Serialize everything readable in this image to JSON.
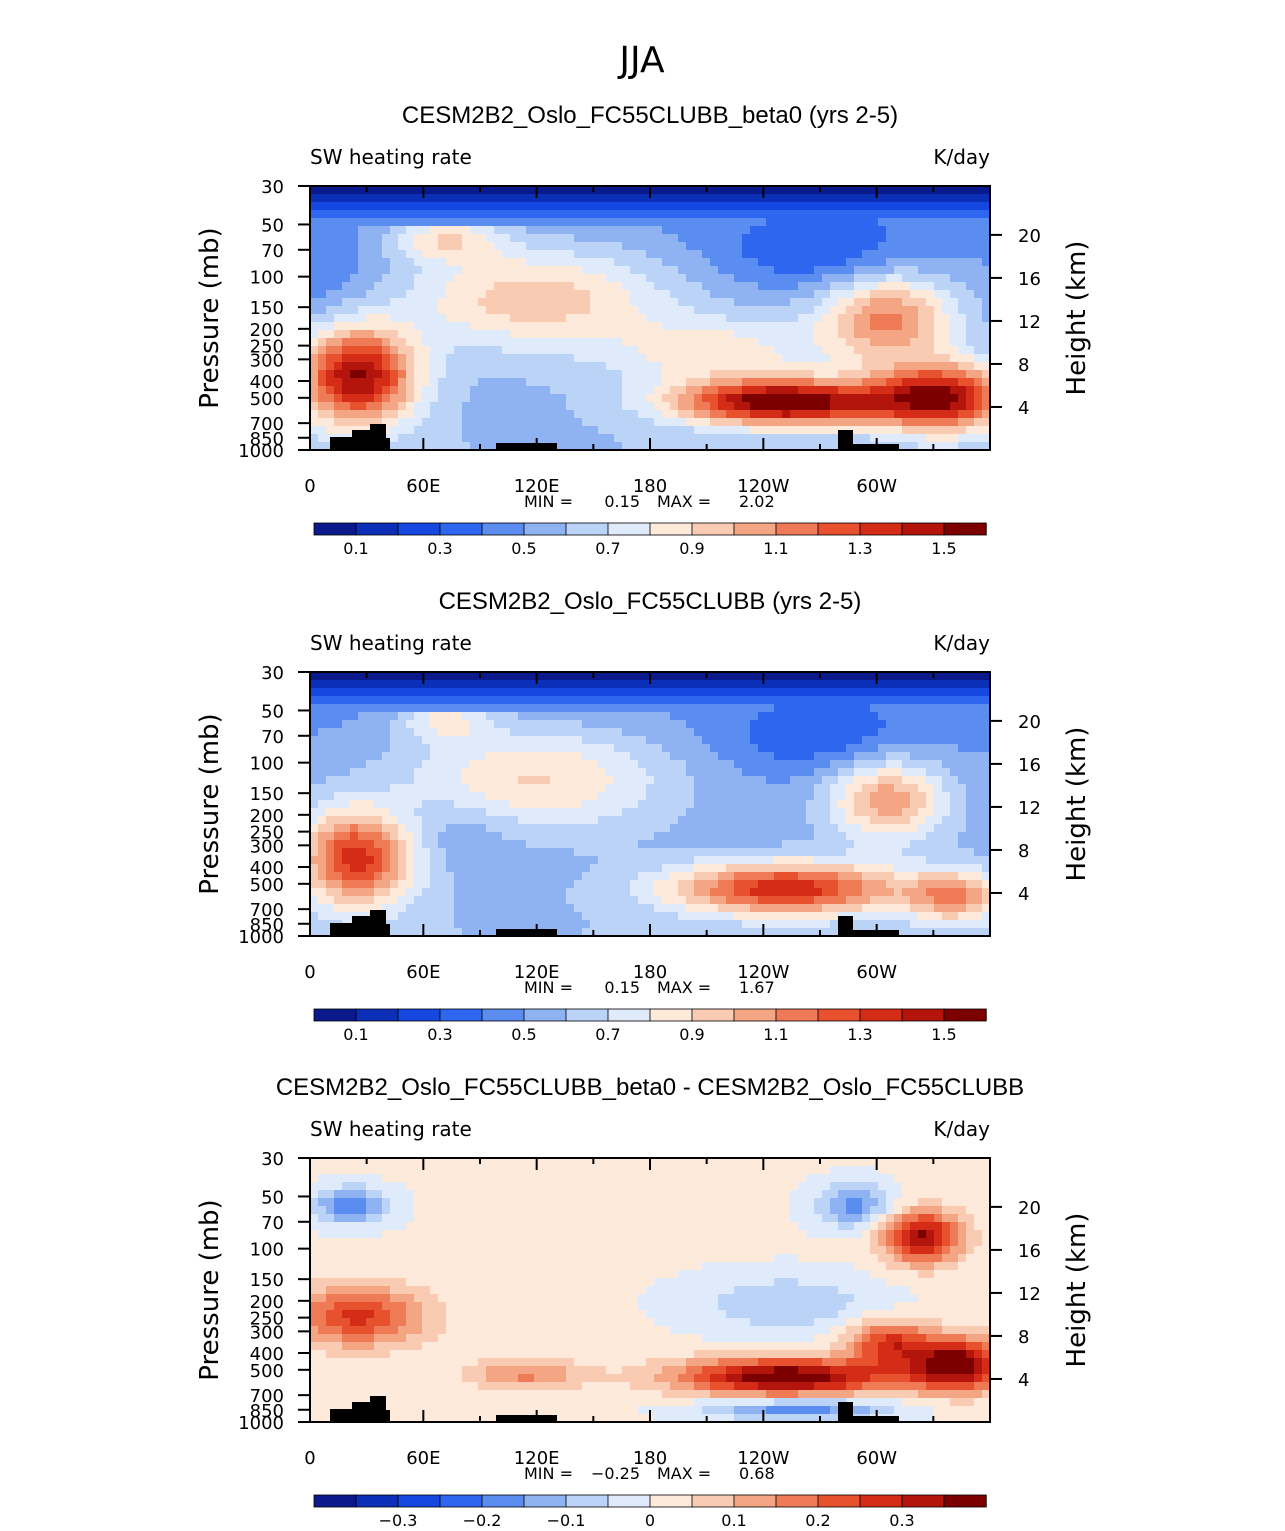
{
  "figure_title": "JJA",
  "colors": {
    "cool": [
      "#0a1a8c",
      "#0c2fb8",
      "#1448e0",
      "#2e66f0",
      "#5b8cf0",
      "#8fb2f3",
      "#bcd3f8",
      "#dfeafb"
    ],
    "warm": [
      "#fdeadb",
      "#f9cbb2",
      "#f4a684",
      "#ef7b56",
      "#e8512d",
      "#d42c16",
      "#b3140c",
      "#7d0000"
    ],
    "land": "#000000"
  },
  "chart_data": [
    {
      "type": "heatmap",
      "title": "CESM2B2_Oslo_FC55CLUBB_beta0 (yrs 2-5)",
      "left_label": "SW heating rate",
      "right_label": "K/day",
      "ylabel": "Pressure (mb)",
      "y2label": "Height (km)",
      "x_ticks": [
        "0",
        "60E",
        "120E",
        "180",
        "120W",
        "60W"
      ],
      "y_ticks": [
        "30",
        "50",
        "70",
        "100",
        "150",
        "200",
        "250",
        "300",
        "400",
        "500",
        "700",
        "850",
        "1000"
      ],
      "y2_ticks": [
        "20",
        "16",
        "12",
        "8",
        "4"
      ],
      "stats": {
        "min_label": "MIN =",
        "min": "0.15",
        "max_label": "MAX =",
        "max": "2.02"
      },
      "colorbar_labels": [
        "0.1",
        "0.3",
        "0.5",
        "0.7",
        "0.9",
        "1.1",
        "1.3",
        "1.5"
      ],
      "zlim": [
        0,
        1.6
      ]
    },
    {
      "type": "heatmap",
      "title": "CESM2B2_Oslo_FC55CLUBB (yrs 2-5)",
      "left_label": "SW heating rate",
      "right_label": "K/day",
      "ylabel": "Pressure (mb)",
      "y2label": "Height (km)",
      "x_ticks": [
        "0",
        "60E",
        "120E",
        "180",
        "120W",
        "60W"
      ],
      "y_ticks": [
        "30",
        "50",
        "70",
        "100",
        "150",
        "200",
        "250",
        "300",
        "400",
        "500",
        "700",
        "850",
        "1000"
      ],
      "y2_ticks": [
        "20",
        "16",
        "12",
        "8",
        "4"
      ],
      "stats": {
        "min_label": "MIN =",
        "min": "0.15",
        "max_label": "MAX =",
        "max": "1.67"
      },
      "colorbar_labels": [
        "0.1",
        "0.3",
        "0.5",
        "0.7",
        "0.9",
        "1.1",
        "1.3",
        "1.5"
      ],
      "zlim": [
        0,
        1.6
      ]
    },
    {
      "type": "heatmap",
      "title": "CESM2B2_Oslo_FC55CLUBB_beta0 - CESM2B2_Oslo_FC55CLUBB",
      "left_label": "SW heating rate",
      "right_label": "K/day",
      "ylabel": "Pressure (mb)",
      "y2label": "Height (km)",
      "x_ticks": [
        "0",
        "60E",
        "120E",
        "180",
        "120W",
        "60W"
      ],
      "y_ticks": [
        "30",
        "50",
        "70",
        "100",
        "150",
        "200",
        "250",
        "300",
        "400",
        "500",
        "700",
        "850",
        "1000"
      ],
      "y2_ticks": [
        "20",
        "16",
        "12",
        "8",
        "4"
      ],
      "stats": {
        "min_label": "MIN =",
        "min": "−0.25",
        "max_label": "MAX =",
        "max": "0.68"
      },
      "colorbar_labels": [
        "−0.3",
        "−0.2",
        "−0.1",
        "0",
        "0.1",
        "0.2",
        "0.3"
      ],
      "zlim": [
        -0.4,
        0.4
      ]
    }
  ]
}
